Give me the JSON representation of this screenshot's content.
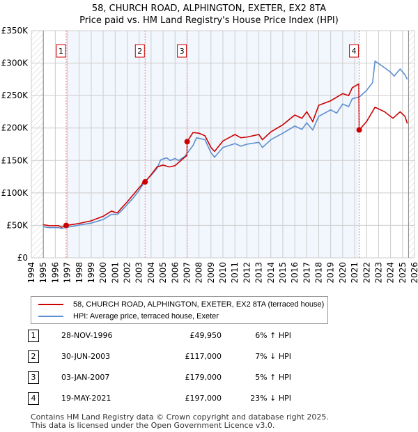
{
  "title_line1": "58, CHURCH ROAD, ALPHINGTON, EXETER, EX2 8TA",
  "title_line2": "Price paid vs. HM Land Registry's House Price Index (HPI)",
  "chart_data": {
    "type": "line",
    "title": "58, CHURCH ROAD, ALPHINGTON, EXETER, EX2 8TA — Price paid vs. HM Land Registry's House Price Index (HPI)",
    "xlim": [
      1994,
      2026
    ],
    "ylim": [
      0,
      350000
    ],
    "x_ticks": [
      "1994",
      "1995",
      "1996",
      "1997",
      "1998",
      "1999",
      "2000",
      "2001",
      "2002",
      "2003",
      "2004",
      "2005",
      "2006",
      "2007",
      "2008",
      "2009",
      "2010",
      "2011",
      "2012",
      "2013",
      "2014",
      "2015",
      "2016",
      "2017",
      "2018",
      "2019",
      "2020",
      "2021",
      "2022",
      "2023",
      "2024",
      "2025",
      "2026"
    ],
    "y_ticks": [
      {
        "v": 0,
        "label": "£0"
      },
      {
        "v": 50000,
        "label": "£50K"
      },
      {
        "v": 100000,
        "label": "£100K"
      },
      {
        "v": 150000,
        "label": "£150K"
      },
      {
        "v": 200000,
        "label": "£200K"
      },
      {
        "v": 250000,
        "label": "£250K"
      },
      {
        "v": 300000,
        "label": "£300K"
      },
      {
        "v": 350000,
        "label": "£350K"
      }
    ],
    "grid": true,
    "series": [
      {
        "name": "58, CHURCH ROAD, ALPHINGTON, EXETER, EX2 8TA (terraced house)",
        "color": "#cc0000",
        "points": [
          [
            1995,
            51000
          ],
          [
            1995.5,
            49500
          ],
          [
            1996.3,
            49500
          ],
          [
            1996.5,
            47000
          ],
          [
            1996.9,
            49950
          ],
          [
            1997.5,
            51500
          ],
          [
            1998,
            53000
          ],
          [
            1999,
            57000
          ],
          [
            2000,
            64000
          ],
          [
            2000.7,
            72000
          ],
          [
            2001,
            70000
          ],
          [
            2001.2,
            69500
          ],
          [
            2001.5,
            76000
          ],
          [
            2002,
            86000
          ],
          [
            2002.5,
            97000
          ],
          [
            2003,
            108000
          ],
          [
            2003.2,
            112000
          ],
          [
            2003.3,
            116000
          ],
          [
            2003.35,
            117000
          ],
          [
            2003.5,
            117000
          ],
          [
            2004,
            128000
          ],
          [
            2004.5,
            140000
          ],
          [
            2005,
            143000
          ],
          [
            2005.5,
            140000
          ],
          [
            2006,
            142000
          ],
          [
            2006.5,
            150000
          ],
          [
            2007,
            158000
          ],
          [
            2007.01,
            179000
          ],
          [
            2007.5,
            193000
          ],
          [
            2008,
            192000
          ],
          [
            2008.5,
            188000
          ],
          [
            2009,
            170000
          ],
          [
            2009.3,
            164000
          ],
          [
            2010,
            180000
          ],
          [
            2011,
            190000
          ],
          [
            2011.5,
            185000
          ],
          [
            2012,
            186000
          ],
          [
            2013,
            190000
          ],
          [
            2013.3,
            182000
          ],
          [
            2014,
            194000
          ],
          [
            2015,
            205000
          ],
          [
            2016,
            220000
          ],
          [
            2016.6,
            215000
          ],
          [
            2017,
            225000
          ],
          [
            2017.5,
            210000
          ],
          [
            2018,
            235000
          ],
          [
            2019,
            242000
          ],
          [
            2020,
            253000
          ],
          [
            2020.5,
            250000
          ],
          [
            2020.8,
            262000
          ],
          [
            2021.35,
            268000
          ],
          [
            2021.38,
            197000
          ],
          [
            2022,
            210000
          ],
          [
            2022.7,
            232000
          ],
          [
            2023.5,
            225000
          ],
          [
            2024.2,
            215000
          ],
          [
            2024.8,
            225000
          ],
          [
            2025.2,
            218000
          ],
          [
            2025.4,
            207000
          ]
        ]
      },
      {
        "name": "HPI: Average price, terraced house, Exeter",
        "color": "#5b8fd0",
        "points": [
          [
            1995,
            48000
          ],
          [
            1995.5,
            46500
          ],
          [
            1996.3,
            46500
          ],
          [
            1996.5,
            45000
          ],
          [
            1996.9,
            47000
          ],
          [
            1997.5,
            48500
          ],
          [
            1998,
            50500
          ],
          [
            1999,
            53500
          ],
          [
            2000,
            59000
          ],
          [
            2000.7,
            67000
          ],
          [
            2001.2,
            67000
          ],
          [
            2001.5,
            72000
          ],
          [
            2002,
            82000
          ],
          [
            2002.5,
            92000
          ],
          [
            2003,
            104000
          ],
          [
            2003.5,
            118000
          ],
          [
            2004,
            127000
          ],
          [
            2004.5,
            138000
          ],
          [
            2004.8,
            151000
          ],
          [
            2005.3,
            154000
          ],
          [
            2005.6,
            150000
          ],
          [
            2006,
            153000
          ],
          [
            2006.3,
            150000
          ],
          [
            2006.8,
            156000
          ],
          [
            2007.5,
            173000
          ],
          [
            2007.8,
            185000
          ],
          [
            2008.5,
            182000
          ],
          [
            2009,
            162000
          ],
          [
            2009.3,
            155000
          ],
          [
            2010,
            170000
          ],
          [
            2011,
            176000
          ],
          [
            2011.5,
            172000
          ],
          [
            2012,
            175000
          ],
          [
            2013,
            178000
          ],
          [
            2013.3,
            170000
          ],
          [
            2014,
            182000
          ],
          [
            2015,
            192000
          ],
          [
            2016,
            203000
          ],
          [
            2016.6,
            198000
          ],
          [
            2017,
            208000
          ],
          [
            2017.5,
            197000
          ],
          [
            2018,
            218000
          ],
          [
            2019,
            228000
          ],
          [
            2019.5,
            223000
          ],
          [
            2020,
            237000
          ],
          [
            2020.5,
            233000
          ],
          [
            2020.8,
            245000
          ],
          [
            2021.4,
            248000
          ],
          [
            2022,
            258000
          ],
          [
            2022.5,
            270000
          ],
          [
            2022.7,
            303000
          ],
          [
            2023.5,
            293000
          ],
          [
            2024,
            286000
          ],
          [
            2024.3,
            280000
          ],
          [
            2024.8,
            291000
          ],
          [
            2025.2,
            282000
          ],
          [
            2025.4,
            275000
          ]
        ]
      }
    ],
    "shaded_range": [
      1996.91,
      2021.38
    ],
    "hatched_ranges": [
      [
        1994,
        1995
      ],
      [
        2025.5,
        2026
      ]
    ],
    "markers": [
      {
        "label": "1",
        "x": 1996.91,
        "y": 49950
      },
      {
        "label": "2",
        "x": 2003.5,
        "y": 117000
      },
      {
        "label": "3",
        "x": 2007.01,
        "y": 179000
      },
      {
        "label": "4",
        "x": 2021.38,
        "y": 197000
      }
    ]
  },
  "legend": {
    "items": [
      "58, CHURCH ROAD, ALPHINGTON, EXETER, EX2 8TA (terraced house)",
      "HPI: Average price, terraced house, Exeter"
    ]
  },
  "transactions": [
    {
      "num": "1",
      "date": "28-NOV-1996",
      "price": "£49,950",
      "hpi": "6% ↑ HPI"
    },
    {
      "num": "2",
      "date": "30-JUN-2003",
      "price": "£117,000",
      "hpi": "7% ↓ HPI"
    },
    {
      "num": "3",
      "date": "03-JAN-2007",
      "price": "£179,000",
      "hpi": "5% ↑ HPI"
    },
    {
      "num": "4",
      "date": "19-MAY-2021",
      "price": "£197,000",
      "hpi": "23% ↓ HPI"
    }
  ],
  "footer": {
    "line1": "Contains HM Land Registry data © Crown copyright and database right 2025.",
    "line2": "This data is licensed under the Open Government Licence v3.0."
  }
}
